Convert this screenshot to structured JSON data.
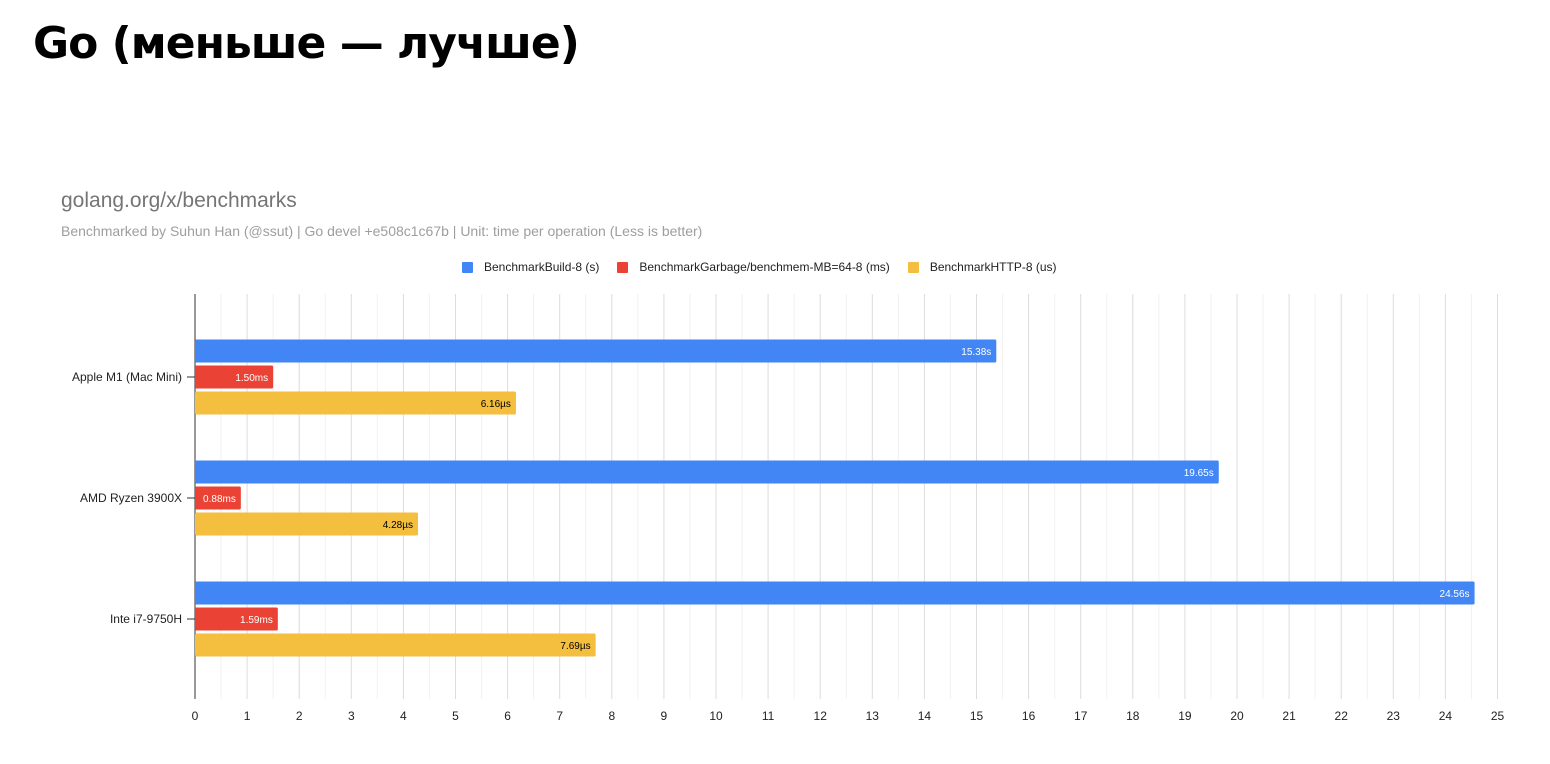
{
  "page": {
    "title": "Go (меньше — лучше)"
  },
  "chart_data": {
    "type": "bar",
    "orientation": "horizontal",
    "title": "golang.org/x/benchmarks",
    "subtitle": "Benchmarked by Suhun Han (@ssut) | Go devel +e508c1c67b | Unit: time per operation (Less is better)",
    "categories": [
      "Apple M1 (Mac Mini)",
      "AMD Ryzen 3900X",
      "Inte i7-9750H"
    ],
    "series": [
      {
        "name": "BenchmarkBuild-8 (s)",
        "color": "#4285f4",
        "label_color": "#ffffff",
        "values": [
          15.38,
          19.65,
          24.56
        ],
        "labels": [
          "15.38s",
          "19.65s",
          "24.56s"
        ]
      },
      {
        "name": "BenchmarkGarbage/benchmem-MB=64-8 (ms)",
        "color": "#ea4335",
        "label_color": "#ffffff",
        "values": [
          1.5,
          0.88,
          1.59
        ],
        "labels": [
          "1.50ms",
          "0.88ms",
          "1.59ms"
        ]
      },
      {
        "name": "BenchmarkHTTP-8 (us)",
        "color": "#f4be3f",
        "label_color": "#000000",
        "values": [
          6.16,
          4.28,
          7.69
        ],
        "labels": [
          "6.16µs",
          "4.28µs",
          "7.69µs"
        ]
      }
    ],
    "xlim": [
      0,
      25
    ],
    "xticks": [
      0,
      1,
      2,
      3,
      4,
      5,
      6,
      7,
      8,
      9,
      10,
      11,
      12,
      13,
      14,
      15,
      16,
      17,
      18,
      19,
      20,
      21,
      22,
      23,
      24,
      25
    ],
    "grid": true,
    "minor_grid": true,
    "legend_position": "top"
  }
}
